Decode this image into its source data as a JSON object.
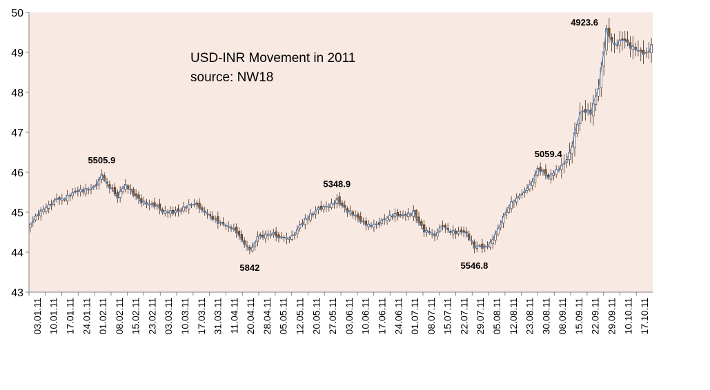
{
  "chart_data": {
    "type": "candlestick",
    "title": "USD-INR Movement in 2011",
    "subtitle": "source:  NW18",
    "ylim": [
      43,
      50
    ],
    "y_ticks": [
      "43",
      "44",
      "45",
      "46",
      "47",
      "48",
      "49",
      "50"
    ],
    "x_tick_labels": [
      "03.01.11",
      "10.01.11",
      "17.01.11",
      "24.01.11",
      "01.02.11",
      "08.02.11",
      "15.02.11",
      "23.02.11",
      "03.03.11",
      "10.03.11",
      "17.03.11",
      "31.03.11",
      "11.04.11",
      "20.04.11",
      "28.04.11",
      "05.05.11",
      "12.05.11",
      "20.05.11",
      "27.05.11",
      "03.06.11",
      "10.06.11",
      "17.06.11",
      "24.06.11",
      "01.07.11",
      "08.07.11",
      "15.07.11",
      "22.07.11",
      "29.07.11",
      "05.08.11",
      "12.08.11",
      "23.08.11",
      "30.08.11",
      "08.09.11",
      "15.09.11",
      "22.09.11",
      "29.09.11",
      "10.10.11",
      "17.10.11"
    ],
    "anchors": [
      {
        "t": 0,
        "v": 44.7
      },
      {
        "t": 10,
        "v": 45.35
      },
      {
        "t": 20,
        "v": 45.5
      },
      {
        "t": 24,
        "v": 45.65
      },
      {
        "t": 27,
        "v": 45.95
      },
      {
        "t": 30,
        "v": 45.6
      },
      {
        "t": 33,
        "v": 45.35
      },
      {
        "t": 36,
        "v": 45.7
      },
      {
        "t": 40,
        "v": 45.4
      },
      {
        "t": 45,
        "v": 45.2
      },
      {
        "t": 50,
        "v": 45.0
      },
      {
        "t": 55,
        "v": 45.05
      },
      {
        "t": 60,
        "v": 45.2
      },
      {
        "t": 65,
        "v": 45.05
      },
      {
        "t": 70,
        "v": 44.85
      },
      {
        "t": 75,
        "v": 44.65
      },
      {
        "t": 80,
        "v": 44.3
      },
      {
        "t": 83,
        "v": 44.05
      },
      {
        "t": 86,
        "v": 44.4
      },
      {
        "t": 90,
        "v": 44.45
      },
      {
        "t": 94,
        "v": 44.35
      },
      {
        "t": 98,
        "v": 44.35
      },
      {
        "t": 102,
        "v": 44.7
      },
      {
        "t": 107,
        "v": 44.95
      },
      {
        "t": 112,
        "v": 45.15
      },
      {
        "t": 116,
        "v": 45.35
      },
      {
        "t": 120,
        "v": 45.0
      },
      {
        "t": 125,
        "v": 44.75
      },
      {
        "t": 130,
        "v": 44.7
      },
      {
        "t": 135,
        "v": 44.85
      },
      {
        "t": 140,
        "v": 44.9
      },
      {
        "t": 145,
        "v": 45.05
      },
      {
        "t": 149,
        "v": 44.5
      },
      {
        "t": 153,
        "v": 44.4
      },
      {
        "t": 156,
        "v": 44.65
      },
      {
        "t": 160,
        "v": 44.55
      },
      {
        "t": 164,
        "v": 44.5
      },
      {
        "t": 168,
        "v": 44.1
      },
      {
        "t": 172,
        "v": 44.15
      },
      {
        "t": 176,
        "v": 44.45
      },
      {
        "t": 180,
        "v": 45.0
      },
      {
        "t": 184,
        "v": 45.35
      },
      {
        "t": 188,
        "v": 45.6
      },
      {
        "t": 192,
        "v": 46.1
      },
      {
        "t": 196,
        "v": 45.85
      },
      {
        "t": 200,
        "v": 46.05
      },
      {
        "t": 204,
        "v": 46.5
      },
      {
        "t": 208,
        "v": 47.5
      },
      {
        "t": 212,
        "v": 47.45
      },
      {
        "t": 215,
        "v": 48.1
      },
      {
        "t": 218,
        "v": 49.6
      },
      {
        "t": 221,
        "v": 49.2
      },
      {
        "t": 224,
        "v": 49.3
      },
      {
        "t": 227,
        "v": 49.1
      },
      {
        "t": 230,
        "v": 49.05
      },
      {
        "t": 233,
        "v": 49.0
      },
      {
        "t": 235,
        "v": 49.2
      }
    ],
    "annotations": [
      {
        "text": "5505.9",
        "t": 27,
        "v": 45.95,
        "pos": "above"
      },
      {
        "text": "5842",
        "t": 83,
        "v": 44.05,
        "pos": "below"
      },
      {
        "text": "5348.9",
        "t": 116,
        "v": 45.35,
        "pos": "above"
      },
      {
        "text": "5546.8",
        "t": 168,
        "v": 44.1,
        "pos": "below"
      },
      {
        "text": "5059.4",
        "t": 196,
        "v": 46.1,
        "pos": "above"
      },
      {
        "text": "4923.6",
        "t": 218,
        "v": 49.6,
        "pos": "aboveleft"
      }
    ],
    "colors": {
      "plot_bg": "#f9e9e3",
      "up_candle": "#ffffff",
      "down_candle": "#8b5a2b",
      "candle_outline": "#3a2a1a",
      "line": "#5b86c5",
      "axis": "#808080"
    },
    "grid": false
  }
}
